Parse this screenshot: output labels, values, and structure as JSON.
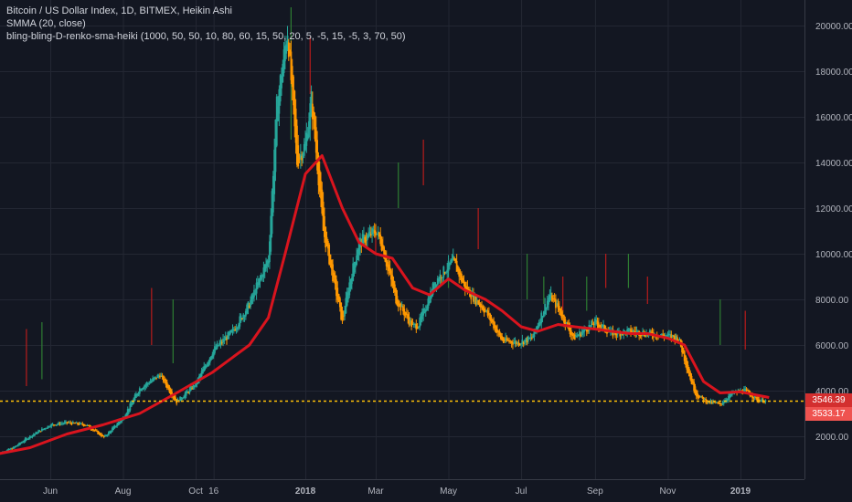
{
  "header": {
    "symbol_line": "Bitcoin / US Dollar Index, 1D, BITMEX, Heikin Ashi",
    "smma_line": "SMMA (20, close)",
    "indicator_line": "bling-bling-D-renko-sma-heiki (1000, 50, 50, 10, 80, 60, 15, 50, 20, 5, -5, 15, -5, 3, 70, 50)"
  },
  "price_tags": {
    "upper": "3546.39",
    "lower": "3533.17"
  },
  "colors": {
    "background": "#131722",
    "grid": "#232733",
    "axis_text": "#b2b5be",
    "candle_up": "#26a69a",
    "candle_down": "#ff9800",
    "smma": "#d9141e",
    "signal_green": "#2e7d32",
    "signal_red": "#b71c1c",
    "dotted_line": "#ffc107",
    "tag_upper": "#d32f2f",
    "tag_lower": "#ef5350"
  },
  "chart_data": {
    "type": "line",
    "chart_style": "heikin-ashi candlestick",
    "title": "Bitcoin / US Dollar Index, 1D, BITMEX, Heikin Ashi",
    "y_axis_position": "right",
    "ylim": [
      0,
      21000
    ],
    "y_ticks": [
      "2000.00",
      "4000.00",
      "6000.00",
      "8000.00",
      "10000.00",
      "12000.00",
      "14000.00",
      "16000.00",
      "18000.00",
      "20000.00"
    ],
    "y_tick_values": [
      2000,
      4000,
      6000,
      8000,
      10000,
      12000,
      14000,
      16000,
      18000,
      20000
    ],
    "x_ticks": [
      "Jun",
      "Aug",
      "Oct",
      "16",
      "2018",
      "Mar",
      "May",
      "Jul",
      "Sep",
      "Nov",
      "2019"
    ],
    "x_tick_dates": [
      "2017-06-01",
      "2017-08-01",
      "2017-10-01",
      "2017-10-16",
      "2018-01-01",
      "2018-03-01",
      "2018-05-01",
      "2018-07-01",
      "2018-09-01",
      "2018-11-01",
      "2019-01-01"
    ],
    "grid": true,
    "horizontal_price_line": 3540,
    "series": [
      {
        "name": "Heikin Ashi",
        "type": "candlestick",
        "x": [
          "2017-04-15",
          "2017-05-01",
          "2017-05-15",
          "2017-06-01",
          "2017-06-15",
          "2017-07-01",
          "2017-07-16",
          "2017-08-01",
          "2017-08-15",
          "2017-09-01",
          "2017-09-15",
          "2017-10-01",
          "2017-10-16",
          "2017-11-01",
          "2017-11-15",
          "2017-12-01",
          "2017-12-08",
          "2017-12-17",
          "2017-12-25",
          "2018-01-01",
          "2018-01-06",
          "2018-01-16",
          "2018-02-01",
          "2018-02-06",
          "2018-02-15",
          "2018-03-01",
          "2018-03-05",
          "2018-03-18",
          "2018-04-01",
          "2018-04-06",
          "2018-04-20",
          "2018-05-05",
          "2018-05-15",
          "2018-06-01",
          "2018-06-15",
          "2018-06-28",
          "2018-07-10",
          "2018-07-25",
          "2018-08-01",
          "2018-08-14",
          "2018-09-01",
          "2018-09-15",
          "2018-10-01",
          "2018-10-15",
          "2018-11-01",
          "2018-11-10",
          "2018-11-20",
          "2018-11-25",
          "2018-12-05",
          "2018-12-15",
          "2018-12-25",
          "2019-01-05",
          "2019-01-15",
          "2019-01-22"
        ],
        "values": [
          1180,
          1500,
          2000,
          2500,
          2600,
          2500,
          1950,
          2800,
          4100,
          4700,
          3500,
          4300,
          5800,
          6600,
          7800,
          9800,
          16500,
          19800,
          14000,
          14800,
          16800,
          11000,
          7000,
          8500,
          10500,
          11000,
          10600,
          8000,
          6800,
          6900,
          8800,
          9700,
          8500,
          7500,
          6200,
          6100,
          6300,
          8200,
          7600,
          6300,
          7000,
          6500,
          6600,
          6500,
          6400,
          6300,
          4500,
          3800,
          3500,
          3400,
          3900,
          4000,
          3600,
          3560
        ]
      },
      {
        "name": "SMMA (20, close)",
        "type": "line",
        "x": [
          "2017-04-15",
          "2017-05-15",
          "2017-06-15",
          "2017-07-15",
          "2017-08-15",
          "2017-09-15",
          "2017-10-15",
          "2017-11-15",
          "2017-12-01",
          "2017-12-15",
          "2018-01-01",
          "2018-01-15",
          "2018-02-01",
          "2018-02-15",
          "2018-03-01",
          "2018-03-15",
          "2018-04-01",
          "2018-04-15",
          "2018-05-01",
          "2018-05-15",
          "2018-06-01",
          "2018-06-15",
          "2018-07-01",
          "2018-07-15",
          "2018-08-01",
          "2018-08-15",
          "2018-09-01",
          "2018-09-15",
          "2018-10-01",
          "2018-10-15",
          "2018-11-01",
          "2018-11-15",
          "2018-12-01",
          "2018-12-15",
          "2019-01-01",
          "2019-01-15",
          "2019-01-25"
        ],
        "values": [
          1200,
          1500,
          2100,
          2500,
          3000,
          3900,
          4800,
          6000,
          7200,
          10000,
          13500,
          14300,
          12000,
          10500,
          10000,
          9800,
          8500,
          8200,
          8900,
          8400,
          8000,
          7500,
          6800,
          6600,
          6900,
          6800,
          6700,
          6600,
          6500,
          6500,
          6300,
          6000,
          4400,
          3900,
          3950,
          3800,
          3700
        ]
      }
    ],
    "signal_bars": [
      {
        "date": "2017-05-12",
        "color": "red",
        "low": 4200,
        "high": 6700
      },
      {
        "date": "2017-05-25",
        "color": "green",
        "low": 4500,
        "high": 7000
      },
      {
        "date": "2017-08-25",
        "color": "red",
        "low": 6000,
        "high": 8500
      },
      {
        "date": "2017-09-12",
        "color": "green",
        "low": 5200,
        "high": 8000
      },
      {
        "date": "2017-12-20",
        "color": "green",
        "low": 15000,
        "high": 20800
      },
      {
        "date": "2018-01-05",
        "color": "red",
        "low": 17000,
        "high": 19500
      },
      {
        "date": "2018-03-01",
        "color": "red",
        "low": 10000,
        "high": 11000
      },
      {
        "date": "2018-03-20",
        "color": "green",
        "low": 12000,
        "high": 14000
      },
      {
        "date": "2018-04-10",
        "color": "red",
        "low": 13000,
        "high": 15000
      },
      {
        "date": "2018-05-01",
        "color": "green",
        "low": 8500,
        "high": 9500
      },
      {
        "date": "2018-05-26",
        "color": "red",
        "low": 10200,
        "high": 12000
      },
      {
        "date": "2018-07-06",
        "color": "green",
        "low": 8000,
        "high": 10000
      },
      {
        "date": "2018-07-20",
        "color": "green",
        "low": 7800,
        "high": 9000
      },
      {
        "date": "2018-08-05",
        "color": "red",
        "low": 7500,
        "high": 9000
      },
      {
        "date": "2018-08-25",
        "color": "green",
        "low": 7500,
        "high": 9000
      },
      {
        "date": "2018-09-10",
        "color": "red",
        "low": 8500,
        "high": 10000
      },
      {
        "date": "2018-09-29",
        "color": "green",
        "low": 8500,
        "high": 10000
      },
      {
        "date": "2018-10-15",
        "color": "red",
        "low": 7800,
        "high": 9000
      },
      {
        "date": "2018-12-15",
        "color": "green",
        "low": 6000,
        "high": 8000
      },
      {
        "date": "2019-01-05",
        "color": "red",
        "low": 5800,
        "high": 7500
      }
    ]
  }
}
